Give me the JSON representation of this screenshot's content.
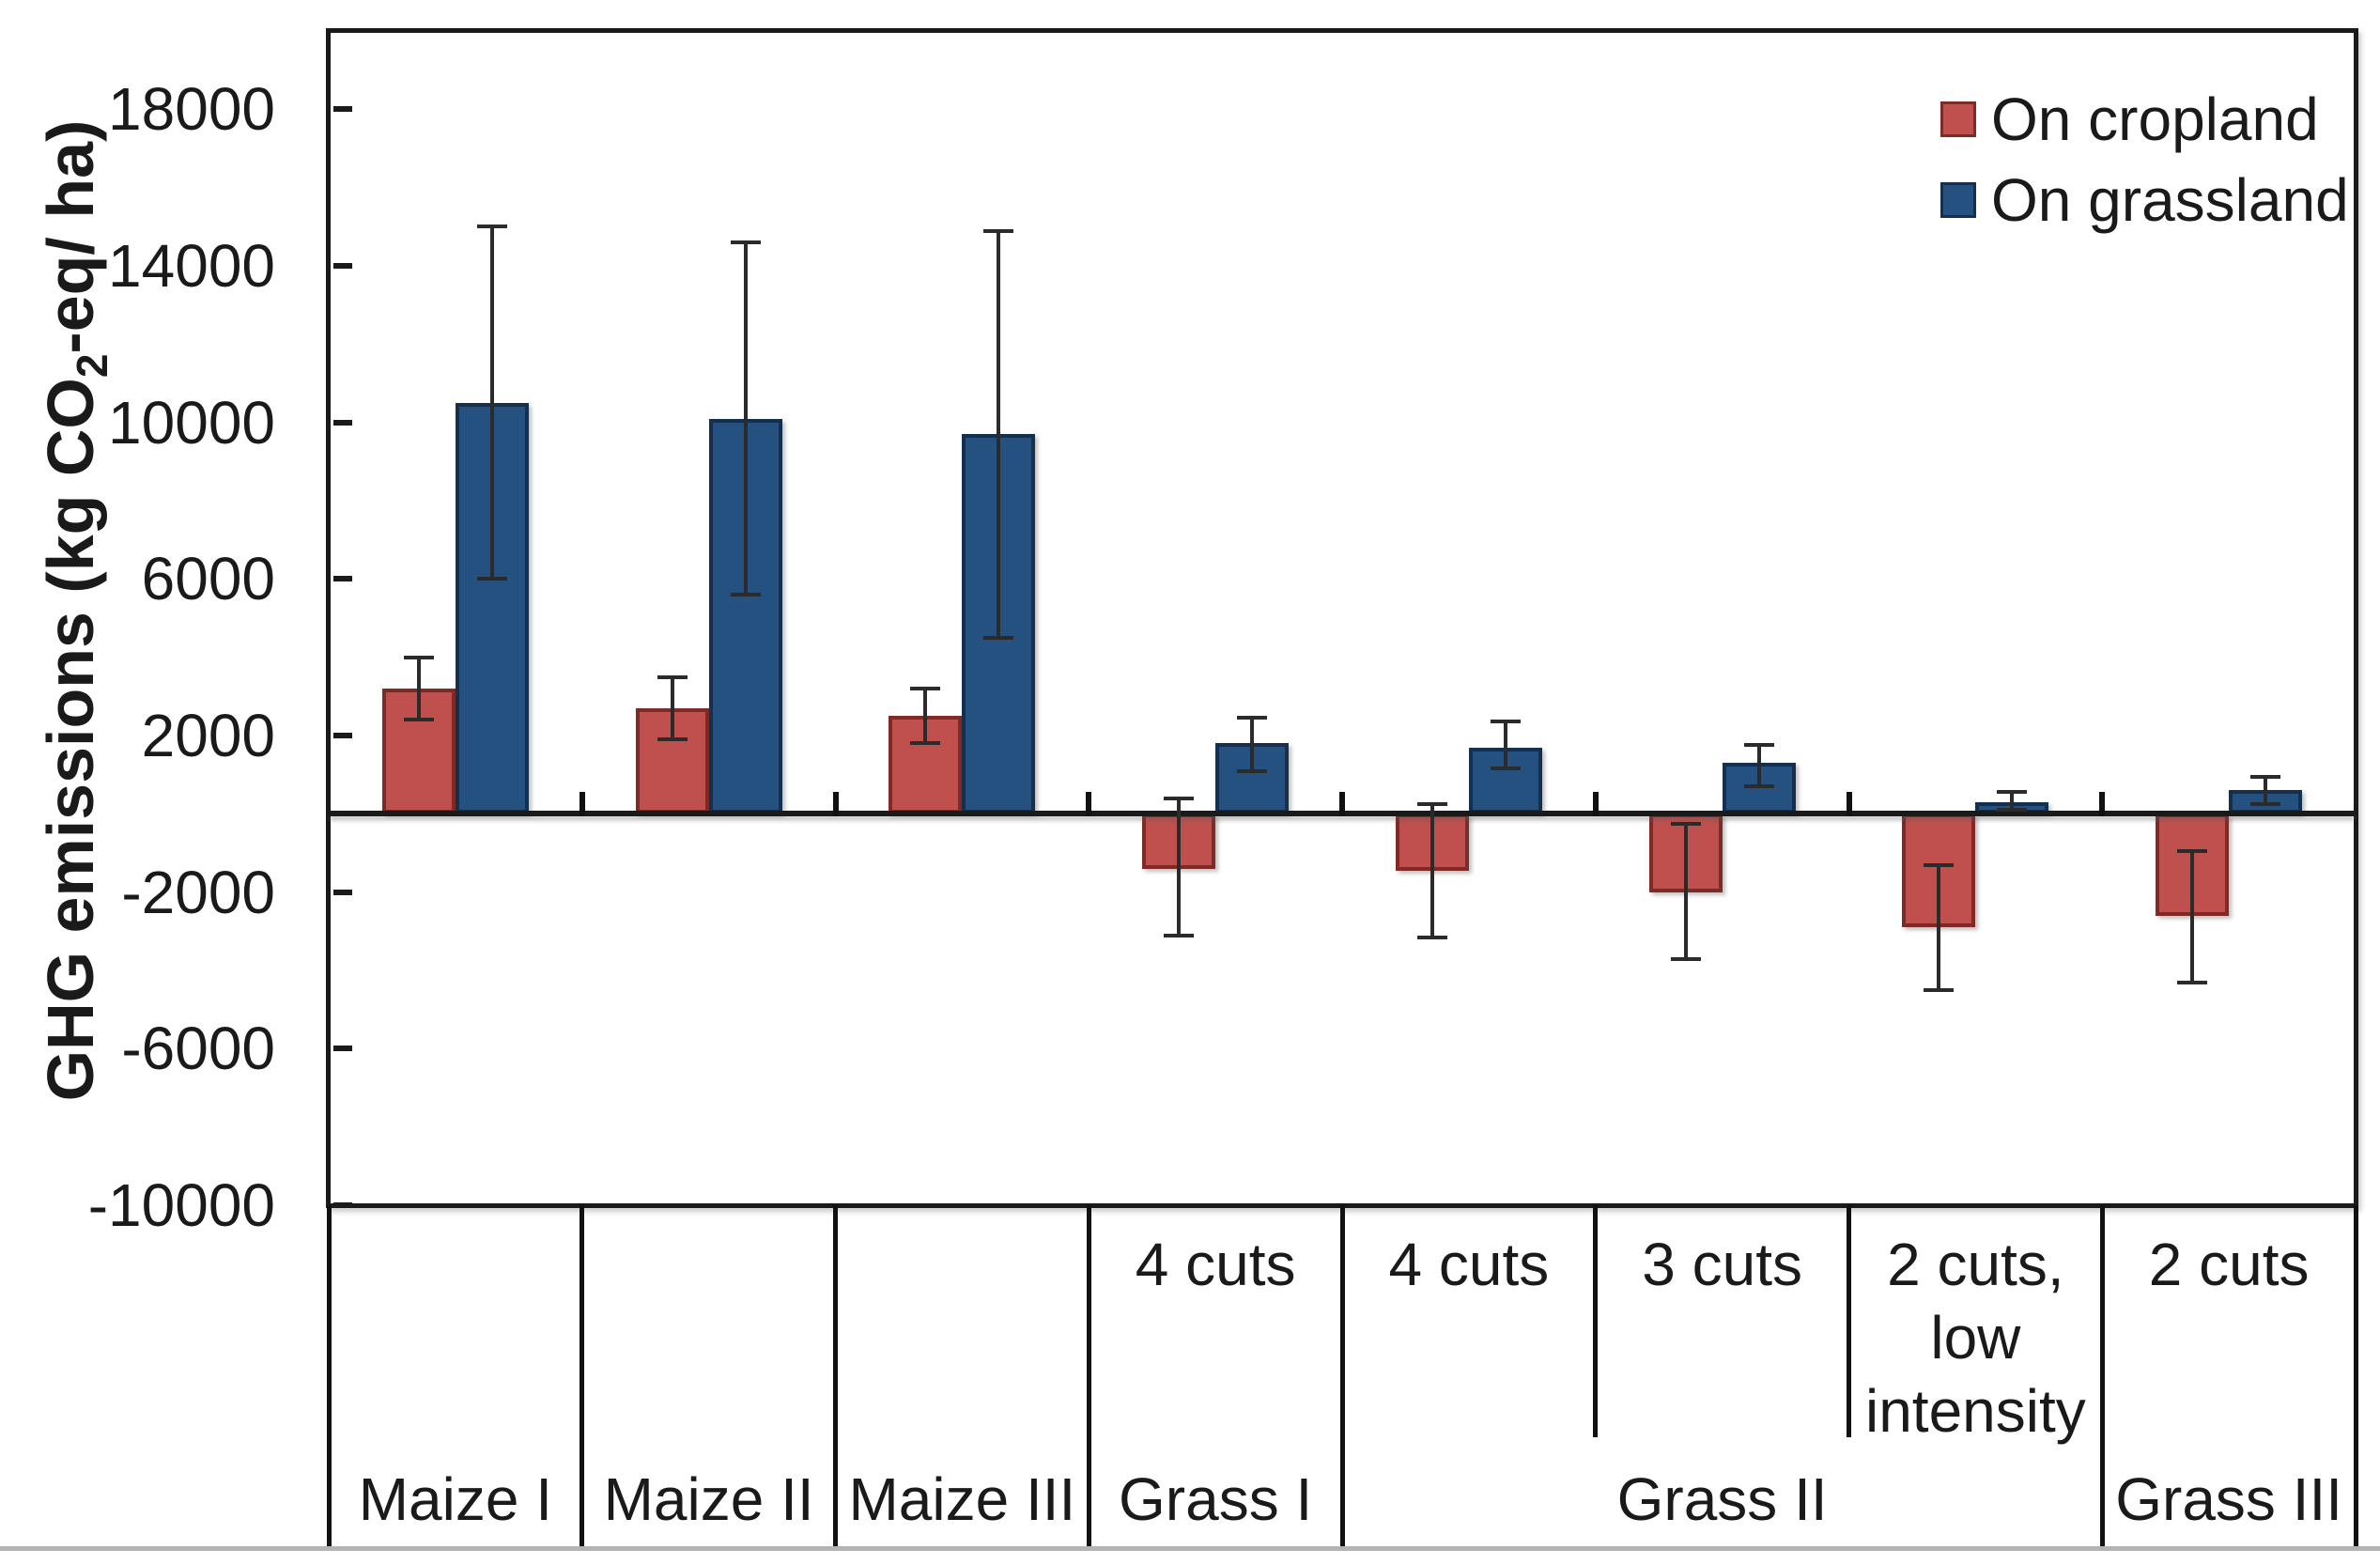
{
  "figure": {
    "background": "#ffffff",
    "bottom_rule_color": "#b3b3b3"
  },
  "chart_data": {
    "type": "bar",
    "title": "",
    "ylabel": "GHG emissions (kg CO2-eq/ ha)",
    "ylabel_parts": {
      "pre": "GHG emissions (kg CO",
      "sub": "2",
      "post": "-eq/ ha)"
    },
    "xlabel": "",
    "ylim": [
      -10000,
      20000
    ],
    "ytick_interval": 4000,
    "yticks": [
      18000,
      14000,
      10000,
      6000,
      2000,
      -2000,
      -6000,
      -10000
    ],
    "grid": false,
    "axis_color": "#1a1a1a",
    "error_bar_color": "#2b2b2b",
    "legend_position": "top-right-inside",
    "categories": [
      {
        "cut": "",
        "cut_lines": [],
        "group": "Maize I"
      },
      {
        "cut": "",
        "cut_lines": [],
        "group": "Maize II"
      },
      {
        "cut": "",
        "cut_lines": [],
        "group": "Maize III"
      },
      {
        "cut": "4 cuts",
        "cut_lines": [
          "4 cuts"
        ],
        "group": "Grass I"
      },
      {
        "cut": "4 cuts",
        "cut_lines": [
          "4 cuts"
        ],
        "group": "Grass II"
      },
      {
        "cut": "3 cuts",
        "cut_lines": [
          "3 cuts"
        ],
        "group": "Grass II"
      },
      {
        "cut": "2 cuts, low intensity",
        "cut_lines": [
          "2 cuts,",
          "low",
          "intensity"
        ],
        "group": "Grass II"
      },
      {
        "cut": "2 cuts",
        "cut_lines": [
          "2 cuts"
        ],
        "group": "Grass III"
      }
    ],
    "group_spans": [
      {
        "label": "Maize I",
        "start": 0,
        "end": 0
      },
      {
        "label": "Maize II",
        "start": 1,
        "end": 1
      },
      {
        "label": "Maize III",
        "start": 2,
        "end": 2
      },
      {
        "label": "Grass I",
        "start": 3,
        "end": 3
      },
      {
        "label": "Grass II",
        "start": 4,
        "end": 6
      },
      {
        "label": "Grass III",
        "start": 7,
        "end": 7
      }
    ],
    "series": [
      {
        "name": "On cropland",
        "color": "#c0504d",
        "border_color": "#7e2a27",
        "values": [
          3200,
          2700,
          2500,
          -1400,
          -1450,
          -2000,
          -2900,
          -2600
        ],
        "err_low": [
          2400,
          1900,
          1800,
          -3100,
          -3150,
          -3700,
          -4500,
          -4300
        ],
        "err_high": [
          4000,
          3500,
          3200,
          400,
          250,
          -250,
          -1300,
          -950
        ]
      },
      {
        "name": "On grassland",
        "color": "#24517f",
        "border_color": "#15304e",
        "values": [
          10500,
          10100,
          9700,
          1800,
          1700,
          1300,
          300,
          600
        ],
        "err_low": [
          6000,
          5600,
          4500,
          1100,
          1150,
          700,
          100,
          250
        ],
        "err_high": [
          15000,
          14600,
          14900,
          2450,
          2350,
          1750,
          550,
          950
        ]
      }
    ]
  }
}
